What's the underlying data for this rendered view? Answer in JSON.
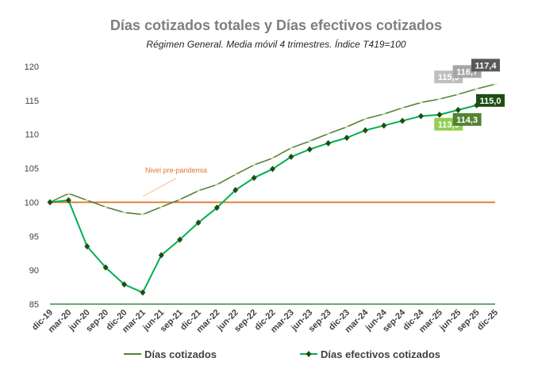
{
  "chart_data": {
    "type": "line",
    "title": "Días cotizados totales y Días efectivos cotizados",
    "subtitle": "Régimen General. Media móvil 4 trimestres. Índice T419=100",
    "categories": [
      "dic-19",
      "mar-20",
      "jun-20",
      "sep-20",
      "dic-20",
      "mar-21",
      "jun-21",
      "sep-21",
      "dic-21",
      "mar-22",
      "jun-22",
      "sep-22",
      "dic-22",
      "mar-23",
      "jun-23",
      "sep-23",
      "dic-23",
      "mar-24",
      "jun-24",
      "sep-24",
      "dic-24",
      "mar-25",
      "jun-25",
      "sep-25",
      "dic-25"
    ],
    "ylim": [
      85,
      120
    ],
    "yticks": [
      85,
      90,
      95,
      100,
      105,
      110,
      115,
      120
    ],
    "grid": false,
    "legend_position": "bottom",
    "series": [
      {
        "name": "Días cotizados",
        "color": "#548235",
        "marker": "dash",
        "values": [
          100,
          101.3,
          100.3,
          99.3,
          98.5,
          98.2,
          99.3,
          100.4,
          101.7,
          102.6,
          104.1,
          105.5,
          106.5,
          108.0,
          109.0,
          110.1,
          111.1,
          112.3,
          113.0,
          113.9,
          114.7,
          115.2,
          115.9,
          116.7,
          117.4
        ],
        "labels": [
          {
            "index": 22,
            "text": "115,9",
            "bg": "#bfbfbf"
          },
          {
            "index": 23,
            "text": "116,7",
            "bg": "#a6a6a6"
          },
          {
            "index": 24,
            "text": "117,4",
            "bg": "#595959"
          }
        ]
      },
      {
        "name": "Días efectivos cotizados",
        "color": "#00b050",
        "marker": "diamond",
        "marker_color": "#1e4d13",
        "values": [
          100,
          100.3,
          93.5,
          90.4,
          87.9,
          86.7,
          92.2,
          94.5,
          97.0,
          99.2,
          101.8,
          103.6,
          104.9,
          106.7,
          107.8,
          108.7,
          109.5,
          110.6,
          111.3,
          112.0,
          112.7,
          112.9,
          113.6,
          114.3,
          115.0
        ],
        "labels": [
          {
            "index": 22,
            "text": "113,6",
            "bg": "#92d050"
          },
          {
            "index": 23,
            "text": "114,3",
            "bg": "#548235"
          },
          {
            "index": 24,
            "text": "115,0",
            "bg": "#1e4d13"
          }
        ]
      }
    ],
    "reference_line": {
      "value": 100,
      "label": "Nivel pre-pandemia",
      "color": "#e2772f"
    },
    "baseline": {
      "value": 85,
      "color": "#1e6b21"
    }
  }
}
